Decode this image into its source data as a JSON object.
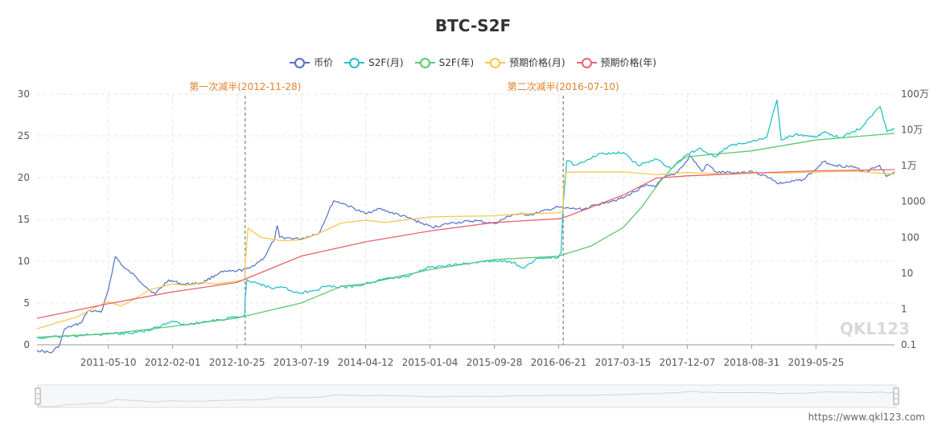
{
  "title": "BTC-S2F",
  "footer_url": "https://www.qkl123.com",
  "watermark": "QKL123",
  "legend": [
    {
      "name": "币价",
      "color": "#5470c6"
    },
    {
      "name": "S2F(月)",
      "color": "#26c1c9"
    },
    {
      "name": "S2F(年)",
      "color": "#5bc86f"
    },
    {
      "name": "预期价格(月)",
      "color": "#f5c84c"
    },
    {
      "name": "预期价格(年)",
      "color": "#e8636f"
    }
  ],
  "chart_data": {
    "type": "line",
    "title": "BTC-S2F",
    "x_axis_ticks": [
      "2011-05-10",
      "2012-02-01",
      "2012-10-25",
      "2013-07-19",
      "2014-04-12",
      "2015-01-04",
      "2015-09-28",
      "2016-06-21",
      "2017-03-15",
      "2017-12-07",
      "2018-08-31",
      "2019-05-25"
    ],
    "xlim": [
      "2010-07-18",
      "2020-04-15"
    ],
    "left_axis": {
      "ylim": [
        0,
        30
      ],
      "ticks": [
        "0",
        "5",
        "10",
        "15",
        "20",
        "25",
        "30"
      ]
    },
    "right_axis": {
      "scale": "log",
      "ticks": [
        "0.1",
        "1",
        "10",
        "100",
        "1000",
        "1万",
        "10万",
        "100万"
      ],
      "values": [
        0.1,
        1,
        10,
        100,
        1000,
        10000,
        100000,
        1000000
      ]
    },
    "grid": true,
    "legend_position": "top-center",
    "markers": [
      {
        "label": "第一次减半(2012-11-28)",
        "date": "2012-11-28"
      },
      {
        "label": "第二次减半(2016-07-10)",
        "date": "2016-07-10"
      }
    ],
    "series": [
      {
        "name": "币价",
        "axis": "right",
        "color": "#5470c6",
        "points": [
          [
            "2010-07-18",
            0.07
          ],
          [
            "2010-09-15",
            0.06
          ],
          [
            "2010-10-20",
            0.1
          ],
          [
            "2010-11-10",
            0.28
          ],
          [
            "2011-01-15",
            0.4
          ],
          [
            "2011-02-15",
            0.9
          ],
          [
            "2011-04-10",
            0.8
          ],
          [
            "2011-05-10",
            3.5
          ],
          [
            "2011-06-08",
            29
          ],
          [
            "2011-07-15",
            14
          ],
          [
            "2011-09-01",
            8
          ],
          [
            "2011-10-15",
            4
          ],
          [
            "2011-11-20",
            2.6
          ],
          [
            "2012-01-15",
            6.5
          ],
          [
            "2012-03-15",
            4.9
          ],
          [
            "2012-06-01",
            5.3
          ],
          [
            "2012-08-15",
            10.5
          ],
          [
            "2012-10-25",
            11.5
          ],
          [
            "2012-12-15",
            13.5
          ],
          [
            "2013-02-15",
            27
          ],
          [
            "2013-03-31",
            95
          ],
          [
            "2013-04-10",
            210
          ],
          [
            "2013-04-20",
            100
          ],
          [
            "2013-07-15",
            90
          ],
          [
            "2013-09-30",
            130
          ],
          [
            "2013-11-30",
            1050
          ],
          [
            "2014-01-15",
            850
          ],
          [
            "2014-04-12",
            450
          ],
          [
            "2014-06-01",
            640
          ],
          [
            "2014-10-01",
            360
          ],
          [
            "2015-01-14",
            190
          ],
          [
            "2015-04-01",
            250
          ],
          [
            "2015-07-15",
            290
          ],
          [
            "2015-09-28",
            240
          ],
          [
            "2015-12-15",
            440
          ],
          [
            "2016-03-01",
            430
          ],
          [
            "2016-06-18",
            700
          ],
          [
            "2016-07-10",
            650
          ],
          [
            "2016-10-01",
            610
          ],
          [
            "2017-01-01",
            960
          ],
          [
            "2017-03-15",
            1250
          ],
          [
            "2017-06-12",
            2700
          ],
          [
            "2017-08-01",
            2800
          ],
          [
            "2017-09-01",
            4700
          ],
          [
            "2017-10-15",
            5600
          ],
          [
            "2017-12-07",
            13800
          ],
          [
            "2017-12-17",
            19500
          ],
          [
            "2018-02-06",
            6900
          ],
          [
            "2018-03-01",
            11000
          ],
          [
            "2018-04-06",
            6600
          ],
          [
            "2018-06-30",
            6300
          ],
          [
            "2018-08-31",
            7000
          ],
          [
            "2018-11-20",
            4500
          ],
          [
            "2018-12-15",
            3200
          ],
          [
            "2019-02-01",
            3450
          ],
          [
            "2019-04-01",
            4100
          ],
          [
            "2019-05-25",
            8000
          ],
          [
            "2019-06-26",
            13000
          ],
          [
            "2019-08-15",
            10200
          ],
          [
            "2019-10-25",
            9200
          ],
          [
            "2019-12-18",
            6600
          ],
          [
            "2020-01-15",
            8700
          ],
          [
            "2020-02-13",
            10300
          ],
          [
            "2020-03-12",
            5000
          ],
          [
            "2020-04-15",
            6800
          ]
        ]
      },
      {
        "name": "S2F(月)",
        "axis": "left",
        "color": "#26c1c9",
        "points": [
          [
            "2010-07-18",
            0.8
          ],
          [
            "2010-11-01",
            1.0
          ],
          [
            "2011-03-01",
            1.2
          ],
          [
            "2011-05-10",
            1.3
          ],
          [
            "2011-08-01",
            1.4
          ],
          [
            "2011-11-01",
            1.8
          ],
          [
            "2012-01-15",
            2.6
          ],
          [
            "2012-02-01",
            2.8
          ],
          [
            "2012-04-01",
            2.4
          ],
          [
            "2012-06-01",
            2.7
          ],
          [
            "2012-08-15",
            3.0
          ],
          [
            "2012-10-25",
            3.3
          ],
          [
            "2012-11-26",
            3.5
          ],
          [
            "2012-11-28",
            5.5
          ],
          [
            "2012-12-05",
            7.8
          ],
          [
            "2013-01-15",
            7.4
          ],
          [
            "2013-03-15",
            6.8
          ],
          [
            "2013-05-01",
            6.9
          ],
          [
            "2013-06-15",
            6.3
          ],
          [
            "2013-07-19",
            6.2
          ],
          [
            "2013-09-01",
            6.4
          ],
          [
            "2013-11-01",
            7.0
          ],
          [
            "2014-01-15",
            6.9
          ],
          [
            "2014-04-12",
            7.3
          ],
          [
            "2014-07-01",
            7.9
          ],
          [
            "2014-10-01",
            8.2
          ],
          [
            "2015-01-04",
            9.3
          ],
          [
            "2015-04-01",
            9.5
          ],
          [
            "2015-07-01",
            9.8
          ],
          [
            "2015-09-28",
            10.1
          ],
          [
            "2015-12-01",
            10.0
          ],
          [
            "2016-02-01",
            9.2
          ],
          [
            "2016-03-15",
            10.2
          ],
          [
            "2016-05-01",
            10.4
          ],
          [
            "2016-06-21",
            10.5
          ],
          [
            "2016-07-01",
            11.0
          ],
          [
            "2016-07-10",
            17.0
          ],
          [
            "2016-07-25",
            22.0
          ],
          [
            "2016-09-01",
            21.5
          ],
          [
            "2016-12-01",
            22.8
          ],
          [
            "2017-03-15",
            23.0
          ],
          [
            "2017-05-15",
            21.5
          ],
          [
            "2017-08-01",
            22.2
          ],
          [
            "2017-10-01",
            21.0
          ],
          [
            "2017-12-07",
            22.8
          ],
          [
            "2018-02-01",
            23.5
          ],
          [
            "2018-04-01",
            22.5
          ],
          [
            "2018-06-01",
            23.8
          ],
          [
            "2018-08-31",
            24.3
          ],
          [
            "2018-11-01",
            24.8
          ],
          [
            "2018-12-14",
            29.3
          ],
          [
            "2019-01-01",
            24.5
          ],
          [
            "2019-03-01",
            25.2
          ],
          [
            "2019-05-25",
            24.8
          ],
          [
            "2019-07-01",
            25.5
          ],
          [
            "2019-09-01",
            24.8
          ],
          [
            "2019-12-01",
            26.0
          ],
          [
            "2020-02-15",
            28.5
          ],
          [
            "2020-03-15",
            25.5
          ],
          [
            "2020-04-15",
            25.8
          ]
        ]
      },
      {
        "name": "S2F(年)",
        "axis": "left",
        "color": "#5bc86f",
        "points": [
          [
            "2010-07-18",
            0.9
          ],
          [
            "2011-05-10",
            1.3
          ],
          [
            "2012-02-01",
            2.2
          ],
          [
            "2012-10-25",
            3.2
          ],
          [
            "2013-07-19",
            5.0
          ],
          [
            "2014-01-01",
            7.0
          ],
          [
            "2014-04-12",
            7.3
          ],
          [
            "2015-01-04",
            9.0
          ],
          [
            "2015-09-28",
            10.2
          ],
          [
            "2016-06-21",
            10.6
          ],
          [
            "2016-07-10",
            10.8
          ],
          [
            "2016-11-01",
            11.8
          ],
          [
            "2017-03-15",
            14.0
          ],
          [
            "2017-06-01",
            16.5
          ],
          [
            "2017-08-15",
            19.5
          ],
          [
            "2017-11-01",
            22.0
          ],
          [
            "2017-12-07",
            22.5
          ],
          [
            "2018-08-31",
            23.2
          ],
          [
            "2019-05-25",
            24.5
          ],
          [
            "2020-04-15",
            25.3
          ]
        ]
      },
      {
        "name": "预期价格(月)",
        "axis": "right",
        "color": "#f5c84c",
        "points": [
          [
            "2010-07-18",
            0.28
          ],
          [
            "2010-10-01",
            0.4
          ],
          [
            "2011-01-01",
            0.6
          ],
          [
            "2011-03-15",
            1.1
          ],
          [
            "2011-05-10",
            1.6
          ],
          [
            "2011-07-01",
            1.2
          ],
          [
            "2011-09-01",
            2.0
          ],
          [
            "2011-11-01",
            3.5
          ],
          [
            "2012-02-01",
            5.0
          ],
          [
            "2012-04-01",
            4.5
          ],
          [
            "2012-06-01",
            5.5
          ],
          [
            "2012-08-01",
            5.0
          ],
          [
            "2012-10-25",
            6.0
          ],
          [
            "2012-11-27",
            6.5
          ],
          [
            "2012-11-28",
            20
          ],
          [
            "2012-12-10",
            180
          ],
          [
            "2013-02-01",
            100
          ],
          [
            "2013-05-01",
            80
          ],
          [
            "2013-07-19",
            85
          ],
          [
            "2013-10-01",
            130
          ],
          [
            "2014-01-01",
            250
          ],
          [
            "2014-04-12",
            300
          ],
          [
            "2014-07-01",
            260
          ],
          [
            "2015-01-04",
            370
          ],
          [
            "2015-04-01",
            380
          ],
          [
            "2015-09-28",
            400
          ],
          [
            "2016-01-01",
            450
          ],
          [
            "2016-06-21",
            480
          ],
          [
            "2016-07-09",
            520
          ],
          [
            "2016-07-10",
            2000
          ],
          [
            "2016-07-20",
            6600
          ],
          [
            "2017-03-15",
            6700
          ],
          [
            "2017-08-01",
            5600
          ],
          [
            "2017-12-07",
            6500
          ],
          [
            "2018-06-01",
            5800
          ],
          [
            "2018-08-31",
            6500
          ],
          [
            "2019-01-01",
            6200
          ],
          [
            "2019-05-25",
            6600
          ],
          [
            "2019-11-01",
            7000
          ],
          [
            "2020-04-15",
            5800
          ]
        ]
      },
      {
        "name": "预期价格(年)",
        "axis": "right",
        "color": "#e8636f",
        "points": [
          [
            "2010-07-18",
            0.55
          ],
          [
            "2011-05-10",
            1.4
          ],
          [
            "2012-02-01",
            3.0
          ],
          [
            "2012-10-25",
            5.5
          ],
          [
            "2013-07-19",
            30
          ],
          [
            "2014-04-12",
            75
          ],
          [
            "2015-01-04",
            150
          ],
          [
            "2015-09-28",
            260
          ],
          [
            "2016-06-21",
            330
          ],
          [
            "2016-07-10",
            350
          ],
          [
            "2017-03-15",
            1500
          ],
          [
            "2017-08-01",
            4500
          ],
          [
            "2017-12-07",
            5200
          ],
          [
            "2018-08-31",
            6200
          ],
          [
            "2019-05-25",
            7200
          ],
          [
            "2020-04-15",
            7800
          ]
        ]
      }
    ]
  }
}
